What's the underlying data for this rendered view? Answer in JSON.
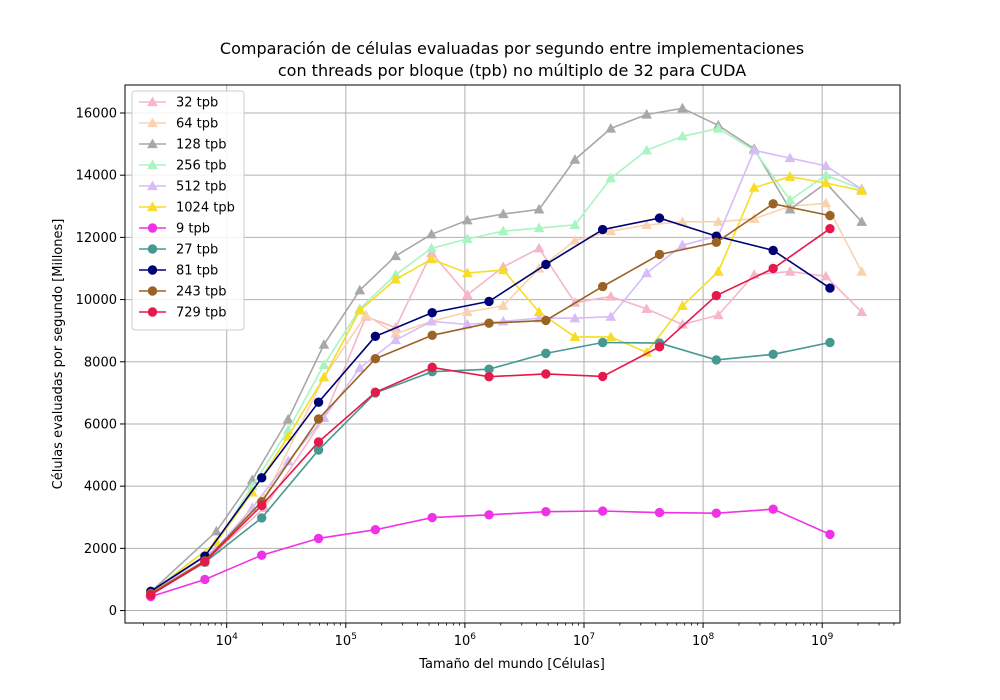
{
  "chart_data": {
    "type": "line",
    "title_line1": "Comparación de células evaluadas por segundo entre implementaciones",
    "title_line2": "con threads por bloque (tpb) no múltiplo de 32 para CUDA",
    "xlabel": "Tamaño del mundo [Células]",
    "ylabel": "Células evaluadas por segundo [Millones]",
    "xscale": "log",
    "xlim": [
      1400,
      4500000000
    ],
    "ylim": [
      -400,
      16900
    ],
    "grid": true,
    "legend_position": "top-left",
    "x_ticks": [
      {
        "value": 10000,
        "base": "10",
        "exp": "4"
      },
      {
        "value": 100000,
        "base": "10",
        "exp": "5"
      },
      {
        "value": 1000000,
        "base": "10",
        "exp": "6"
      },
      {
        "value": 10000000,
        "base": "10",
        "exp": "7"
      },
      {
        "value": 100000000,
        "base": "10",
        "exp": "8"
      },
      {
        "value": 1000000000,
        "base": "10",
        "exp": "9"
      }
    ],
    "y_ticks": [
      {
        "value": 0,
        "label": "0"
      },
      {
        "value": 2000,
        "label": "2000"
      },
      {
        "value": 4000,
        "label": "4000"
      },
      {
        "value": 6000,
        "label": "6000"
      },
      {
        "value": 8000,
        "label": "8000"
      },
      {
        "value": 10000,
        "label": "10000"
      },
      {
        "value": 12000,
        "label": "12000"
      },
      {
        "value": 14000,
        "label": "14000"
      },
      {
        "value": 16000,
        "label": "16000"
      }
    ],
    "series": [
      {
        "name": "32 tpb",
        "color": "#f5b7c8",
        "marker": "triangle",
        "x": [
          2304,
          6400,
          20736,
          65536,
          147456,
          262144,
          524288,
          1048576,
          2097152,
          4194304,
          8388608,
          16777216,
          33554432,
          67108864,
          134217728,
          268435456,
          536870912,
          1073741824,
          2147483648
        ],
        "y": [
          560,
          1550,
          3300,
          6200,
          9450,
          9100,
          11500,
          10150,
          11050,
          11650,
          9900,
          10100,
          9700,
          9200,
          9500,
          10800,
          10900,
          10750,
          9600
        ]
      },
      {
        "name": "64 tpb",
        "color": "#f9d3b0",
        "marker": "triangle",
        "x": [
          2304,
          6400,
          20736,
          65536,
          147456,
          262144,
          524288,
          1048576,
          2097152,
          4194304,
          8388608,
          16777216,
          33554432,
          67108864,
          134217728,
          268435456,
          536870912,
          1073741824,
          2147483648
        ],
        "y": [
          580,
          1600,
          3600,
          7500,
          9500,
          8900,
          9300,
          9600,
          9800,
          11000,
          11900,
          12200,
          12400,
          12500,
          12500,
          12600,
          13000,
          13100,
          10900
        ]
      },
      {
        "name": "128 tpb",
        "color": "#a8a8a8",
        "marker": "triangle",
        "x": [
          2304,
          8192,
          16384,
          32768,
          65536,
          131072,
          262144,
          524288,
          1048576,
          2097152,
          4194304,
          8388608,
          16777216,
          33554432,
          67108864,
          134217728,
          268435456,
          536870912,
          1073741824,
          2147483648
        ],
        "y": [
          600,
          2550,
          4200,
          6150,
          8550,
          10300,
          11400,
          12100,
          12550,
          12750,
          12900,
          14500,
          15500,
          15950,
          16150,
          15600,
          14850,
          12900,
          13750,
          12500
        ]
      },
      {
        "name": "256 tpb",
        "color": "#a8f5c0",
        "marker": "triangle",
        "x": [
          2304,
          8192,
          16384,
          32768,
          65536,
          131072,
          262144,
          524288,
          1048576,
          2097152,
          4194304,
          8388608,
          16777216,
          33554432,
          67108864,
          134217728,
          268435456,
          536870912,
          1073741824,
          2147483648
        ],
        "y": [
          580,
          2200,
          4000,
          5800,
          7900,
          9700,
          10800,
          11650,
          11950,
          12200,
          12300,
          12400,
          13900,
          14800,
          15250,
          15500,
          14800,
          13200,
          14000,
          13550
        ]
      },
      {
        "name": "512 tpb",
        "color": "#d8bcf8",
        "marker": "triangle",
        "x": [
          2304,
          8192,
          16384,
          32768,
          65536,
          131072,
          262144,
          524288,
          1048576,
          2097152,
          4194304,
          8388608,
          16777216,
          33554432,
          67108864,
          134217728,
          268435456,
          536870912,
          1073741824,
          2147483648
        ],
        "y": [
          560,
          2000,
          3300,
          4800,
          6200,
          7800,
          8700,
          9300,
          9200,
          9300,
          9400,
          9400,
          9450,
          10850,
          11750,
          12050,
          14800,
          14550,
          14300,
          13550
        ]
      },
      {
        "name": "1024 tpb",
        "color": "#f7dc28",
        "marker": "triangle",
        "x": [
          2304,
          8192,
          16384,
          32768,
          65536,
          131072,
          262144,
          524288,
          1048576,
          2097152,
          4194304,
          8388608,
          16777216,
          33554432,
          67108864,
          134217728,
          268435456,
          536870912,
          1073741824,
          2147483648
        ],
        "y": [
          560,
          2200,
          3800,
          5600,
          7500,
          9650,
          10650,
          11300,
          10850,
          10950,
          9600,
          8800,
          8800,
          8300,
          9800,
          10900,
          13600,
          13950,
          13750,
          13500
        ]
      },
      {
        "name": "9 tpb",
        "color": "#f032e6",
        "marker": "circle",
        "x": [
          2304,
          6561,
          19683,
          59049,
          177147,
          531441,
          1594323,
          4782969,
          14348907,
          43046721,
          129140163,
          387420489,
          1162261467
        ],
        "y": [
          450,
          1000,
          1780,
          2320,
          2600,
          2990,
          3080,
          3180,
          3200,
          3150,
          3130,
          3260,
          2450
        ]
      },
      {
        "name": "27 tpb",
        "color": "#469990",
        "marker": "circle",
        "x": [
          2304,
          6561,
          19683,
          59049,
          177147,
          531441,
          1594323,
          4782969,
          14348907,
          43046721,
          129140163,
          387420489,
          1162261467
        ],
        "y": [
          520,
          1550,
          2980,
          5160,
          7000,
          7680,
          7760,
          8270,
          8620,
          8600,
          8060,
          8240,
          8620
        ]
      },
      {
        "name": "81 tpb",
        "color": "#000075",
        "marker": "circle",
        "x": [
          2304,
          6561,
          19683,
          59049,
          177147,
          531441,
          1594323,
          4782969,
          14348907,
          43046721,
          129140163,
          387420489,
          1162261467
        ],
        "y": [
          620,
          1750,
          4270,
          6700,
          8820,
          9580,
          9940,
          11130,
          12250,
          12620,
          12040,
          11580,
          10370
        ]
      },
      {
        "name": "243 tpb",
        "color": "#9a6324",
        "marker": "circle",
        "x": [
          2304,
          6561,
          19683,
          59049,
          177147,
          531441,
          1594323,
          4782969,
          14348907,
          43046721,
          129140163,
          387420489,
          1162261467
        ],
        "y": [
          550,
          1600,
          3500,
          6160,
          8100,
          8850,
          9240,
          9330,
          10420,
          11450,
          11840,
          13080,
          12700
        ]
      },
      {
        "name": "729 tpb",
        "color": "#e6194b",
        "marker": "circle",
        "x": [
          2304,
          6561,
          19683,
          59049,
          177147,
          531441,
          1594323,
          4782969,
          14348907,
          43046721,
          129140163,
          387420489,
          1162261467
        ],
        "y": [
          500,
          1570,
          3380,
          5420,
          7020,
          7820,
          7520,
          7610,
          7530,
          8480,
          10130,
          11000,
          12280
        ]
      }
    ]
  }
}
